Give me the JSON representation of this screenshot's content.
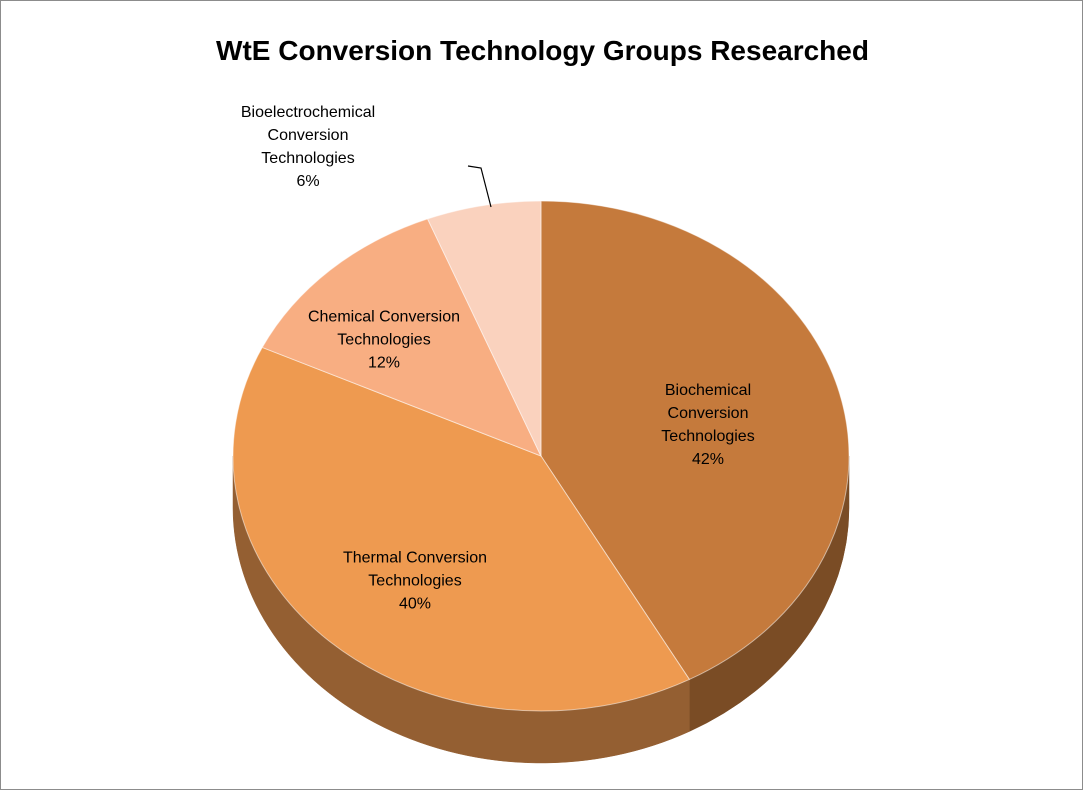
{
  "chart_data": {
    "type": "pie",
    "title": "WtE Conversion Technology Groups Researched",
    "categories": [
      "Biochemical Conversion Technologies",
      "Thermal Conversion Technologies",
      "Chemical Conversion Technologies",
      "Bioelectrochemical Conversion Technologies"
    ],
    "values": [
      42,
      40,
      12,
      6
    ],
    "value_labels": [
      "42%",
      "40%",
      "12%",
      "6%"
    ],
    "colors": [
      "#c57a3c",
      "#ee9a50",
      "#f8ae82",
      "#fad2be"
    ]
  }
}
